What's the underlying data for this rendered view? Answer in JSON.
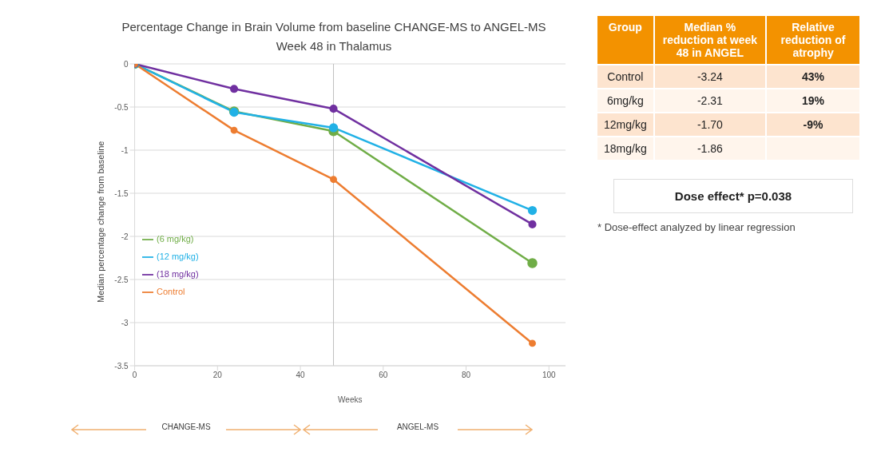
{
  "chart_data": [
    {
      "type": "line",
      "title": "Percentage Change in Brain Volume from baseline CHANGE-MS to ANGEL-MS Week 48 in Thalamus",
      "xlabel": "Weeks",
      "ylabel": "Median percentage change from baseline",
      "x": [
        0,
        24,
        48,
        96
      ],
      "series": [
        {
          "name": "(6 mg/kg)",
          "color": "#70ad47",
          "values": [
            0,
            -0.55,
            -0.78,
            -2.31
          ]
        },
        {
          "name": "(12 mg/kg)",
          "color": "#21b1e6",
          "values": [
            0,
            -0.56,
            -0.74,
            -1.7
          ]
        },
        {
          "name": "(18 mg/kg)",
          "color": "#7030a0",
          "values": [
            0,
            -0.29,
            -0.52,
            -1.86
          ]
        },
        {
          "name": "Control",
          "color": "#ed7d31",
          "values": [
            0,
            -0.77,
            -1.34,
            -3.24
          ]
        }
      ],
      "xlim": [
        0,
        104
      ],
      "xticks": [
        0,
        20,
        40,
        60,
        80,
        100
      ],
      "ylim": [
        -3.5,
        0
      ],
      "yticks": [
        0,
        -0.5,
        -1,
        -1.5,
        -2,
        -2.5,
        -3,
        -3.5
      ],
      "grid": "y",
      "legend": "left",
      "marker": "circle",
      "line_style": "solid",
      "ref_lines": [
        {
          "axis": "x",
          "value": 48,
          "color": "#bfbfbf"
        }
      ],
      "annotations": [
        "CHANGE-MS",
        "ANGEL-MS"
      ]
    },
    {
      "type": "other",
      "categories": [
        "Group",
        "Median % reduction at week 48 in ANGEL",
        "Relative reduction of atrophy"
      ],
      "y_categories": [
        "Control",
        "6mg/kg",
        "12mg/kg",
        "18mg/kg"
      ],
      "cell_labels": [
        [
          "-3.24",
          "43%"
        ],
        [
          "-2.31",
          "19%"
        ],
        [
          "-1.70",
          "-9%"
        ],
        [
          "-1.86",
          null
        ]
      ],
      "annotations": [
        "Dose effect* p=0.038",
        "* Dose-effect analyzed by linear regression"
      ]
    }
  ]
}
